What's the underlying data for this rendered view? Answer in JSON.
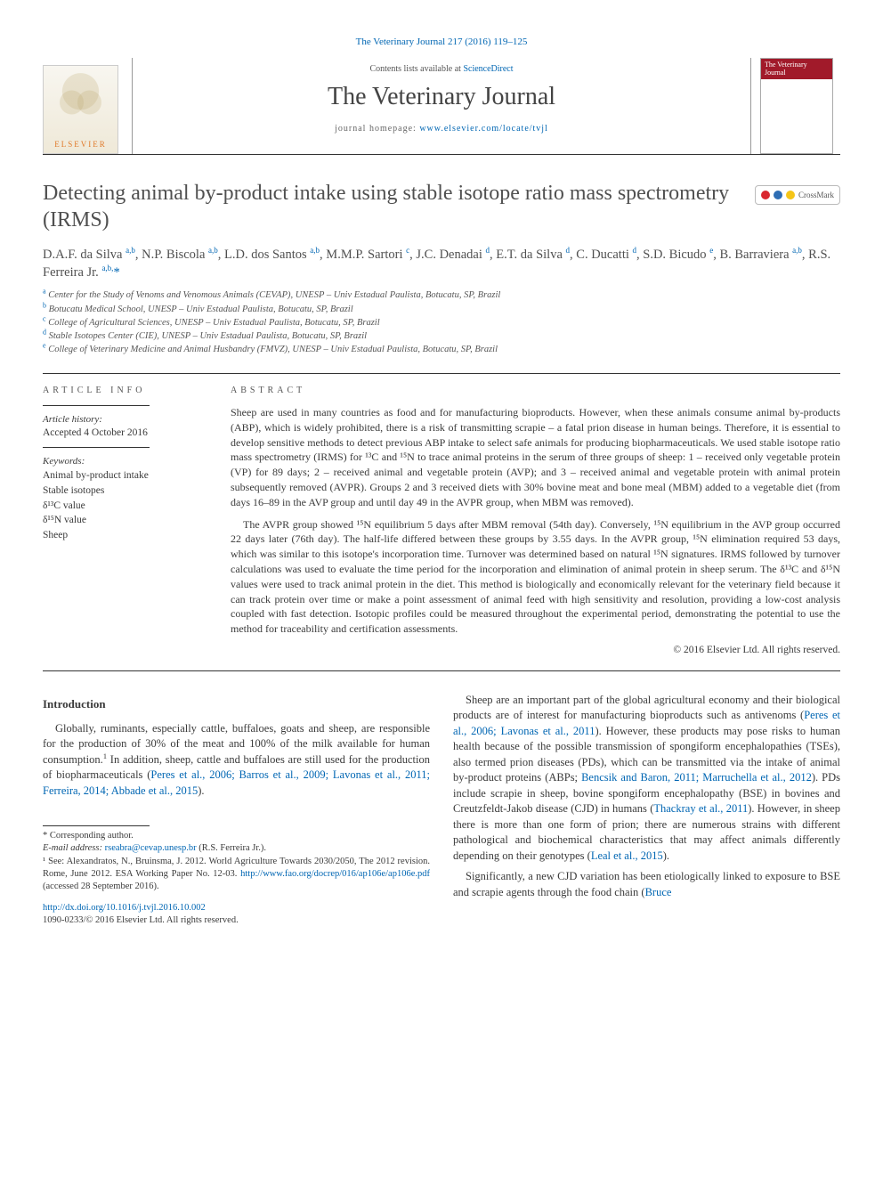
{
  "colors": {
    "link": "#0066b3",
    "text": "#3a3a3a",
    "rule": "#333333",
    "elsevier_orange": "#e07a2a",
    "cover_red": "#a11a2a",
    "crossmark_red": "#d9262e",
    "crossmark_blue": "#2e6db4",
    "crossmark_yellow": "#f5c518"
  },
  "typography": {
    "body_font": "Times New Roman",
    "title_size_pt": 24,
    "journal_name_size_pt": 28,
    "abstract_size_pt": 12,
    "body_size_pt": 12.5
  },
  "running_head": {
    "journal_ref": "The Veterinary Journal 217 (2016) 119–125"
  },
  "masthead": {
    "contents_prefix": "Contents lists available at ",
    "contents_link": "ScienceDirect",
    "journal_name": "The Veterinary Journal",
    "homepage_prefix": "journal homepage: ",
    "homepage_url": "www.elsevier.com/locate/tvjl",
    "elsevier_label": "ELSEVIER",
    "cover_title": "The Veterinary Journal",
    "crossmark_label": "CrossMark"
  },
  "article": {
    "title": "Detecting animal by-product intake using stable isotope ratio mass spectrometry (IRMS)",
    "authors_html": "D.A.F. da Silva <sup>a,b</sup>, N.P. Biscola <sup>a,b</sup>, L.D. dos Santos <sup>a,b</sup>, M.M.P. Sartori <sup>c</sup>, J.C. Denadai <sup>d</sup>, E.T. da Silva <sup>d</sup>, C. Ducatti <sup>d</sup>, S.D. Bicudo <sup>e</sup>, B. Barraviera <sup>a,b</sup>, R.S. Ferreira Jr. <sup>a,b,</sup><span class='corr'>*</span>",
    "affiliations": [
      {
        "key": "a",
        "text": "Center for the Study of Venoms and Venomous Animals (CEVAP), UNESP – Univ Estadual Paulista, Botucatu, SP, Brazil"
      },
      {
        "key": "b",
        "text": "Botucatu Medical School, UNESP – Univ Estadual Paulista, Botucatu, SP, Brazil"
      },
      {
        "key": "c",
        "text": "College of Agricultural Sciences, UNESP – Univ Estadual Paulista, Botucatu, SP, Brazil"
      },
      {
        "key": "d",
        "text": "Stable Isotopes Center (CIE), UNESP – Univ Estadual Paulista, Botucatu, SP, Brazil"
      },
      {
        "key": "e",
        "text": "College of Veterinary Medicine and Animal Husbandry (FMVZ), UNESP – Univ Estadual Paulista, Botucatu, SP, Brazil"
      }
    ]
  },
  "article_info": {
    "heading": "ARTICLE INFO",
    "history_label": "Article history:",
    "history_value": "Accepted 4 October 2016",
    "keywords_label": "Keywords:",
    "keywords": [
      "Animal by-product intake",
      "Stable isotopes",
      "δ¹³C value",
      "δ¹⁵N value",
      "Sheep"
    ]
  },
  "abstract": {
    "heading": "ABSTRACT",
    "paragraphs": [
      "Sheep are used in many countries as food and for manufacturing bioproducts. However, when these animals consume animal by-products (ABP), which is widely prohibited, there is a risk of transmitting scrapie – a fatal prion disease in human beings. Therefore, it is essential to develop sensitive methods to detect previous ABP intake to select safe animals for producing biopharmaceuticals. We used stable isotope ratio mass spectrometry (IRMS) for ¹³C and ¹⁵N to trace animal proteins in the serum of three groups of sheep: 1 – received only vegetable protein (VP) for 89 days; 2 – received animal and vegetable protein (AVP); and 3 – received animal and vegetable protein with animal protein subsequently removed (AVPR). Groups 2 and 3 received diets with 30% bovine meat and bone meal (MBM) added to a vegetable diet (from days 16–89 in the AVP group and until day 49 in the AVPR group, when MBM was removed).",
      "The AVPR group showed ¹⁵N equilibrium 5 days after MBM removal (54th day). Conversely, ¹⁵N equilibrium in the AVP group occurred 22 days later (76th day). The half-life differed between these groups by 3.55 days. In the AVPR group, ¹⁵N elimination required 53 days, which was similar to this isotope's incorporation time. Turnover was determined based on natural ¹⁵N signatures. IRMS followed by turnover calculations was used to evaluate the time period for the incorporation and elimination of animal protein in sheep serum. The δ¹³C and δ¹⁵N values were used to track animal protein in the diet. This method is biologically and economically relevant for the veterinary field because it can track protein over time or make a point assessment of animal feed with high sensitivity and resolution, providing a low-cost analysis coupled with fast detection. Isotopic profiles could be measured throughout the experimental period, demonstrating the potential to use the method for traceability and certification assessments."
    ],
    "copyright": "© 2016 Elsevier Ltd. All rights reserved."
  },
  "body": {
    "intro_heading": "Introduction",
    "col1_p1_pre": "Globally, ruminants, especially cattle, buffaloes, goats and sheep, are responsible for the production of 30% of the meat and 100% of the milk available for human consumption.",
    "col1_p1_sup": "1",
    "col1_p1_post": " In addition, sheep, cattle and buffaloes are still used for the production of biopharmaceuticals (",
    "col1_p1_ref": "Peres et al., 2006; Barros et al., 2009; Lavonas et al., 2011; Ferreira, 2014; Abbade et al., 2015",
    "col1_p1_end": ").",
    "col2_p1_a": "Sheep are an important part of the global agricultural economy and their biological products are of interest for manufacturing bioproducts such as antivenoms (",
    "col2_p1_ref1": "Peres et al., 2006; Lavonas et al., 2011",
    "col2_p1_b": "). However, these products may pose risks to human health because of the possible transmission of spongiform encephalopathies (TSEs), also termed prion diseases (PDs), which can be transmitted via the intake of animal by-product proteins (ABPs; ",
    "col2_p1_ref2": "Bencsik and Baron, 2011; Marruchella et al., 2012",
    "col2_p1_c": "). PDs include scrapie in sheep, bovine spongiform encephalopathy (BSE) in bovines and Creutzfeldt-Jakob disease (CJD) in humans (",
    "col2_p1_ref3": "Thackray et al., 2011",
    "col2_p1_d": "). However, in sheep there is more than one form of prion; there are numerous strains with different pathological and biochemical characteristics that may affect animals differently depending on their genotypes (",
    "col2_p1_ref4": "Leal et al., 2015",
    "col2_p1_e": ").",
    "col2_p2_a": "Significantly, a new CJD variation has been etiologically linked to exposure to BSE and scrapie agents through the food chain (",
    "col2_p2_ref": "Bruce"
  },
  "footnotes": {
    "corr_label": "* Corresponding author.",
    "email_label": "E-mail address: ",
    "email": "rseabra@cevap.unesp.br",
    "email_person": " (R.S. Ferreira Jr.).",
    "fn1_pre": "¹ See: Alexandratos, N., Bruinsma, J. 2012. World Agriculture Towards 2030/2050, The 2012 revision. Rome, June 2012. ESA Working Paper No. 12-03. ",
    "fn1_url": "http://www.fao.org/docrep/016/ap106e/ap106e.pdf",
    "fn1_post": " (accessed 28 September 2016).",
    "doi_url": "http://dx.doi.org/10.1016/j.tvjl.2016.10.002",
    "issn_line": "1090-0233/© 2016 Elsevier Ltd. All rights reserved."
  }
}
